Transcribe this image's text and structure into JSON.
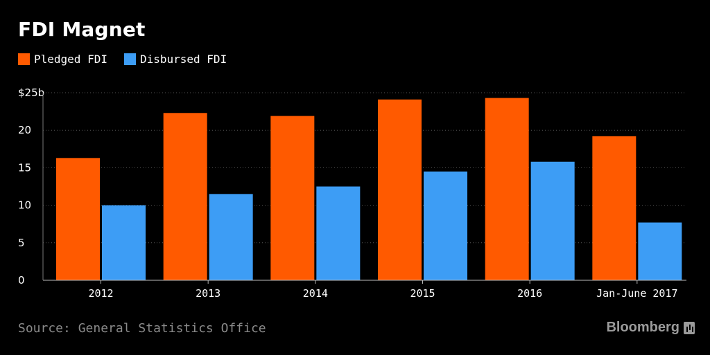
{
  "header": {
    "title": "FDI Magnet"
  },
  "legend": {
    "items": [
      {
        "label": "Pledged FDI",
        "color": "#ff5a00"
      },
      {
        "label": "Disbursed FDI",
        "color": "#3d9df5"
      }
    ]
  },
  "footer": {
    "source": "Source: General Statistics Office",
    "brand": "Bloomberg",
    "brand_icon": "bloomberg-logo-icon"
  },
  "chart_data": {
    "type": "bar",
    "title": "FDI Magnet",
    "categories": [
      "2012",
      "2013",
      "2014",
      "2015",
      "2016",
      "Jan-June 2017"
    ],
    "series": [
      {
        "name": "Pledged FDI",
        "color": "#ff5a00",
        "values": [
          16.3,
          22.3,
          21.9,
          24.1,
          24.3,
          19.2
        ]
      },
      {
        "name": "Disbursed FDI",
        "color": "#3d9df5",
        "values": [
          10.0,
          11.5,
          12.5,
          14.5,
          15.8,
          7.7
        ]
      }
    ],
    "ylim": [
      0,
      25
    ],
    "yticks": [
      0,
      5,
      10,
      15,
      20,
      25
    ],
    "ytick_labels": [
      "0",
      "5",
      "10",
      "15",
      "20",
      "$25b"
    ],
    "grid": true,
    "legend_position": "top-left"
  }
}
